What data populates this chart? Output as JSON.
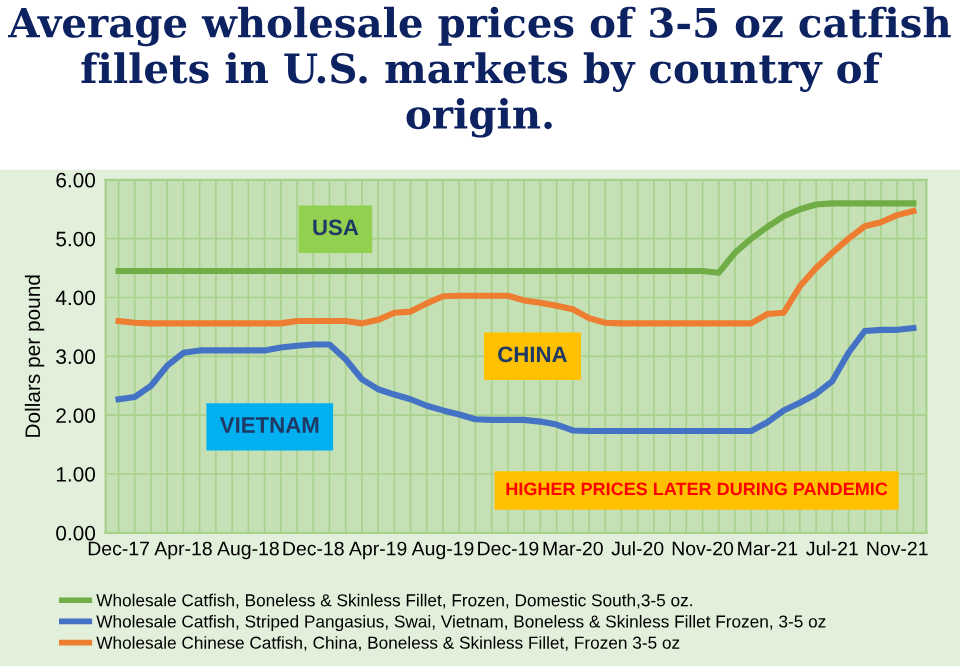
{
  "chart_data": {
    "type": "line",
    "title": "Average wholesale prices of 3-5 oz catfish fillets in U.S. markets by country of origin.",
    "ylabel": "Dollars per pound",
    "categories": [
      "Dec-17",
      null,
      null,
      null,
      "Apr-18",
      null,
      null,
      null,
      "Aug-18",
      null,
      null,
      null,
      "Dec-18",
      null,
      null,
      null,
      "Apr-19",
      null,
      null,
      null,
      "Aug-19",
      null,
      null,
      null,
      "Dec-19",
      null,
      null,
      null,
      "Mar-20",
      null,
      null,
      null,
      "Jul-20",
      null,
      null,
      null,
      "Nov-20",
      null,
      null,
      null,
      "Mar-21",
      null,
      null,
      null,
      "Jul-21",
      null,
      null,
      null,
      "Nov-21",
      null
    ],
    "series": [
      {
        "name": "Wholesale Catfish, Boneless & Skinless Fillet, Frozen, Domestic South,3-5 oz.",
        "color": "#70ad47",
        "values": [
          4.45,
          4.45,
          4.45,
          4.45,
          4.45,
          4.45,
          4.45,
          4.45,
          4.45,
          4.45,
          4.45,
          4.45,
          4.45,
          4.45,
          4.45,
          4.45,
          4.45,
          4.45,
          4.45,
          4.45,
          4.45,
          4.45,
          4.45,
          4.45,
          4.45,
          4.45,
          4.45,
          4.45,
          4.45,
          4.45,
          4.45,
          4.45,
          4.45,
          4.45,
          4.45,
          4.45,
          4.45,
          4.42,
          4.76,
          5.0,
          5.2,
          5.38,
          5.5,
          5.58,
          5.6,
          5.6,
          5.6,
          5.6,
          5.6,
          5.6
        ]
      },
      {
        "name": "Wholesale Catfish, Striped Pangasius, Swai, Vietnam, Boneless & Skinless Fillet Frozen, 3-5 oz",
        "color": "#4472c4",
        "values": [
          2.27,
          2.31,
          2.5,
          2.84,
          3.06,
          3.1,
          3.1,
          3.1,
          3.1,
          3.1,
          3.15,
          3.18,
          3.2,
          3.2,
          2.95,
          2.61,
          2.44,
          2.35,
          2.27,
          2.16,
          2.08,
          2.01,
          1.93,
          1.92,
          1.92,
          1.92,
          1.89,
          1.84,
          1.74,
          1.73,
          1.73,
          1.73,
          1.73,
          1.73,
          1.73,
          1.73,
          1.73,
          1.73,
          1.73,
          1.73,
          1.88,
          2.08,
          2.21,
          2.36,
          2.58,
          3.06,
          3.43,
          3.45,
          3.45,
          3.48
        ]
      },
      {
        "name": "Wholesale Chinese Catfish, China, Boneless & Skinless Fillet, Frozen 3-5 oz",
        "color": "#ed7d31",
        "values": [
          3.6,
          3.57,
          3.56,
          3.56,
          3.56,
          3.56,
          3.56,
          3.56,
          3.56,
          3.56,
          3.56,
          3.6,
          3.6,
          3.6,
          3.6,
          3.56,
          3.62,
          3.74,
          3.76,
          3.9,
          4.02,
          4.03,
          4.03,
          4.03,
          4.03,
          3.95,
          3.91,
          3.86,
          3.8,
          3.65,
          3.57,
          3.56,
          3.56,
          3.56,
          3.56,
          3.56,
          3.56,
          3.56,
          3.56,
          3.56,
          3.72,
          3.74,
          4.19,
          4.5,
          4.76,
          5.0,
          5.21,
          5.28,
          5.4,
          5.47
        ]
      }
    ],
    "ylim": [
      0,
      6
    ],
    "yticks": [
      {
        "value": 0,
        "label": "0.00"
      },
      {
        "value": 1,
        "label": "1.00"
      },
      {
        "value": 2,
        "label": "2.00"
      },
      {
        "value": 3,
        "label": "3.00"
      },
      {
        "value": 4,
        "label": "4.00"
      },
      {
        "value": 5,
        "label": "5.00"
      },
      {
        "value": 6,
        "label": "6.00"
      }
    ],
    "grid": true,
    "legend": "bottom",
    "annotations": [
      "USA",
      "CHINA",
      "VIETNAM",
      "HIGHER PRICES LATER DURING PANDEMIC"
    ]
  }
}
